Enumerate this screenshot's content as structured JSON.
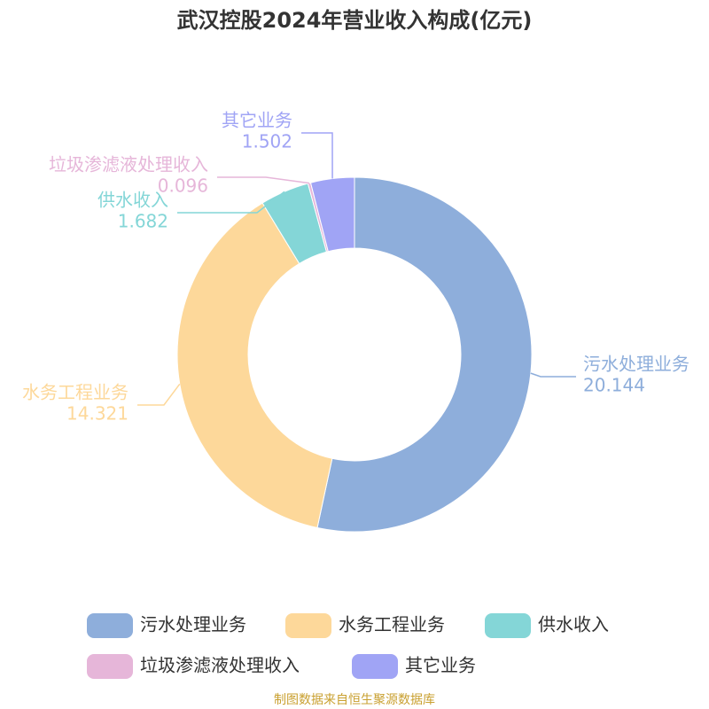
{
  "chart_data": {
    "type": "pie",
    "title": "武汉控股2024年营业收入构成(亿元)",
    "categories": [
      "污水处理业务",
      "水务工程业务",
      "供水收入",
      "垃圾渗滤液处理收入",
      "其它业务"
    ],
    "values": [
      20.144,
      14.321,
      1.682,
      0.096,
      1.502
    ],
    "colors": [
      "#8eaedb",
      "#fdd89a",
      "#84d6d7",
      "#e6b6d9",
      "#a0a4f5"
    ],
    "source": "制图数据来自恒生聚源数据库"
  }
}
